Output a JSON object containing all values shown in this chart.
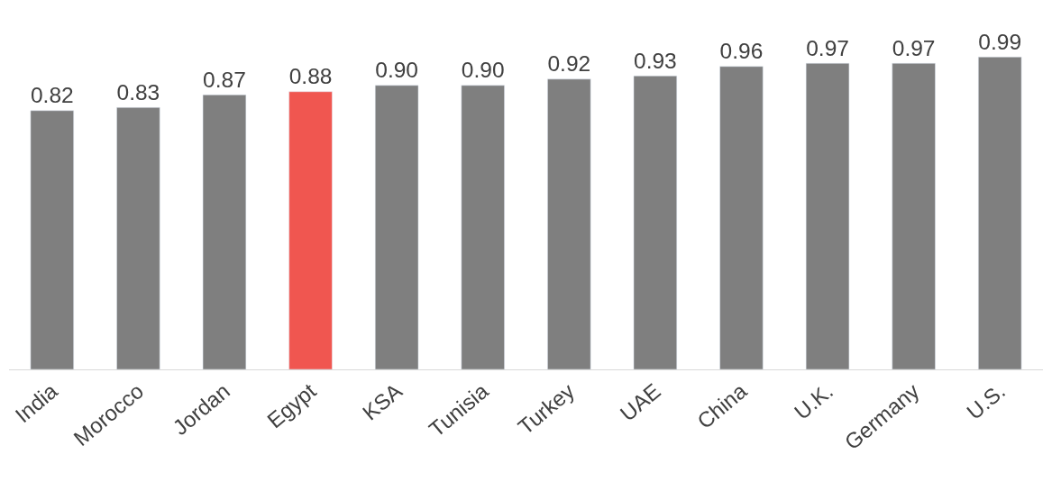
{
  "chart_data": {
    "type": "bar",
    "categories": [
      "India",
      "Morocco",
      "Jordan",
      "Egypt",
      "KSA",
      "Tunisia",
      "Turkey",
      "UAE",
      "China",
      "U.K.",
      "Germany",
      "U.S."
    ],
    "values": [
      0.82,
      0.83,
      0.87,
      0.88,
      0.9,
      0.9,
      0.92,
      0.93,
      0.96,
      0.97,
      0.97,
      0.99
    ],
    "value_labels": [
      "0.82",
      "0.83",
      "0.87",
      "0.88",
      "0.90",
      "0.90",
      "0.92",
      "0.93",
      "0.96",
      "0.97",
      "0.97",
      "0.99"
    ],
    "colors": [
      "#7f7f7f",
      "#7f7f7f",
      "#7f7f7f",
      "#f05650",
      "#7f7f7f",
      "#7f7f7f",
      "#7f7f7f",
      "#7f7f7f",
      "#7f7f7f",
      "#7f7f7f",
      "#7f7f7f",
      "#7f7f7f"
    ],
    "tick_labels": "x",
    "legend": false
  }
}
